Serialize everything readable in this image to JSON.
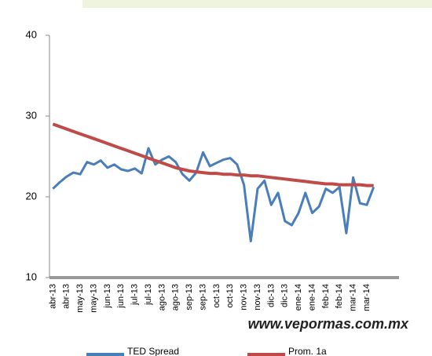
{
  "chart_data": {
    "type": "line",
    "watermark": "www.vepormas.com.mx",
    "categories": [
      "abr-13",
      null,
      "abr-13",
      null,
      "may-13",
      null,
      "may-13",
      null,
      "jun-13",
      null,
      "jun-13",
      null,
      "jul-13",
      null,
      "jul-13",
      null,
      "ago-13",
      null,
      "ago-13",
      null,
      "sep-13",
      null,
      "sep-13",
      null,
      "oct-13",
      null,
      "oct-13",
      null,
      "nov-13",
      null,
      "nov-13",
      null,
      "dic-13",
      null,
      "dic-13",
      null,
      "ene-14",
      null,
      "ene-14",
      null,
      "feb-14",
      null,
      "feb-14",
      null,
      "mar-14",
      null,
      "mar-14",
      null
    ],
    "series": [
      {
        "name": "TED Spread",
        "color": "#4a7ebb",
        "values": [
          21.0,
          21.8,
          22.5,
          23.0,
          22.8,
          24.3,
          24.0,
          24.5,
          23.6,
          24.0,
          23.4,
          23.2,
          23.5,
          22.9,
          26.0,
          24.0,
          24.6,
          25.0,
          24.3,
          22.8,
          22.0,
          23.0,
          25.5,
          23.8,
          24.2,
          24.6,
          24.8,
          24.0,
          21.5,
          14.5,
          21.0,
          22.0,
          19.0,
          20.5,
          17.0,
          16.5,
          18.0,
          20.5,
          18.0,
          18.8,
          21.0,
          20.5,
          21.2,
          15.5,
          22.4,
          19.2,
          19.0,
          21.2
        ]
      },
      {
        "name": "Prom. 1a",
        "color": "#be4b48",
        "values": [
          29.0,
          28.7,
          28.4,
          28.1,
          27.8,
          27.5,
          27.2,
          26.9,
          26.6,
          26.3,
          26.0,
          25.7,
          25.4,
          25.1,
          24.8,
          24.5,
          24.2,
          23.9,
          23.6,
          23.4,
          23.2,
          23.1,
          23.0,
          22.9,
          22.9,
          22.8,
          22.8,
          22.7,
          22.7,
          22.6,
          22.6,
          22.5,
          22.4,
          22.3,
          22.2,
          22.1,
          22.0,
          21.9,
          21.8,
          21.7,
          21.6,
          21.6,
          21.5,
          21.5,
          21.5,
          21.5,
          21.4,
          21.4
        ]
      }
    ],
    "ylim": [
      10,
      40
    ],
    "yticks": [
      10,
      20,
      30,
      40
    ],
    "grid": false
  }
}
